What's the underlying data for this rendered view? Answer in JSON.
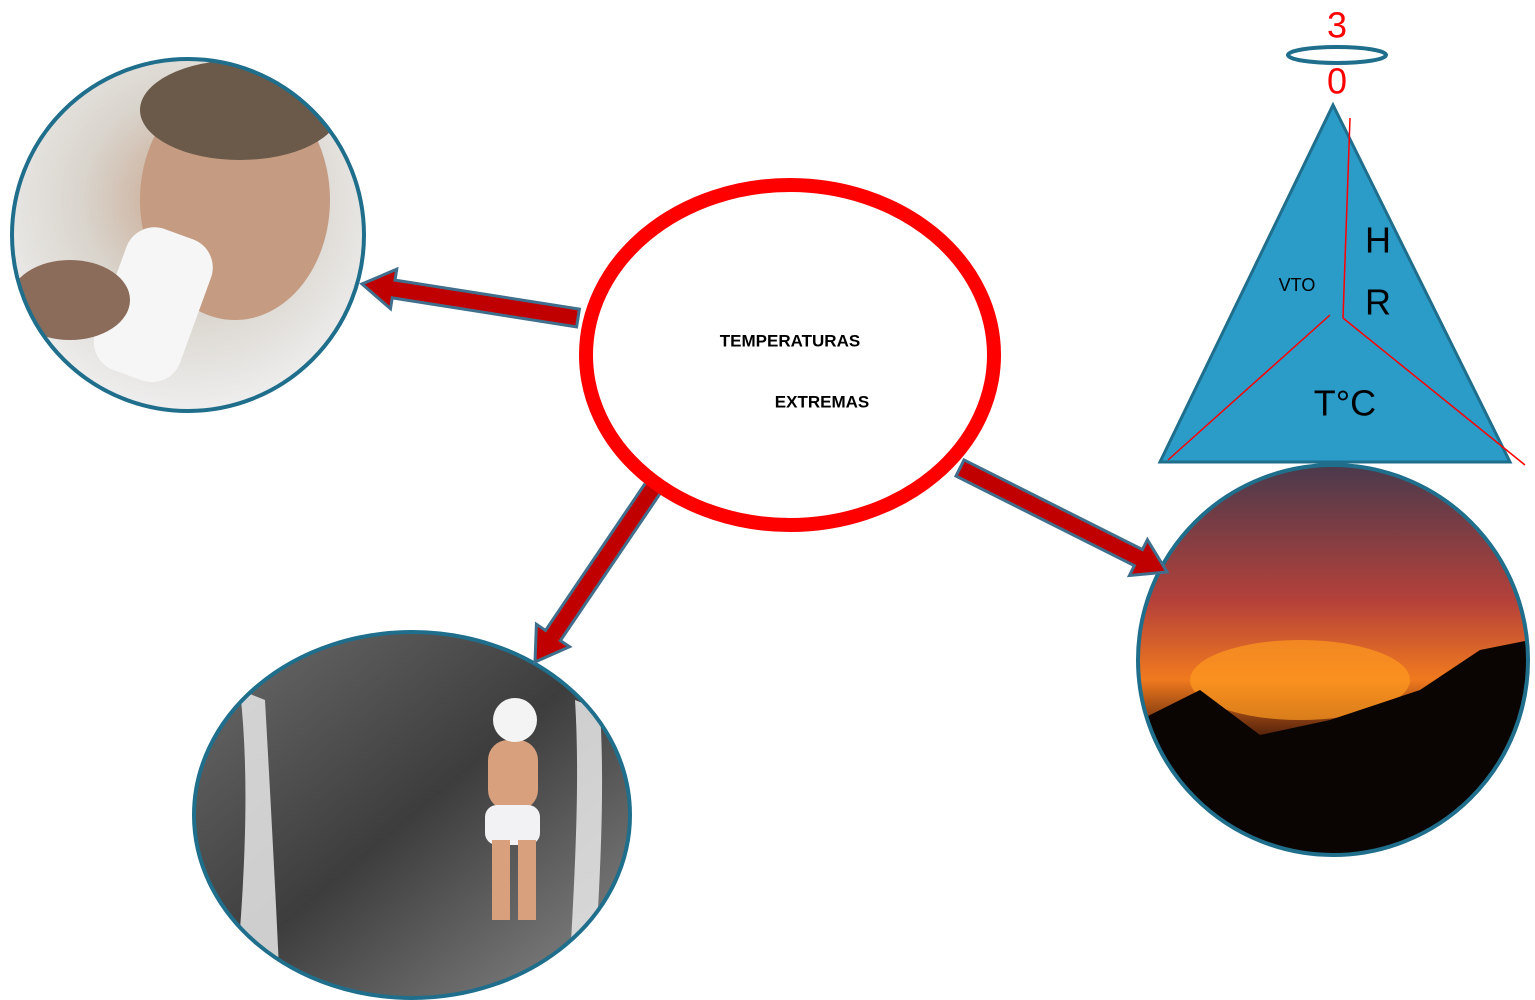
{
  "center": {
    "lines": [
      "TEMPERATURAS",
      "EXTREMAS"
    ]
  },
  "triangle": {
    "labels": [
      "VTO",
      "H",
      "R",
      "T°C"
    ]
  },
  "top_number": {
    "digits": [
      "3",
      "0"
    ]
  }
}
